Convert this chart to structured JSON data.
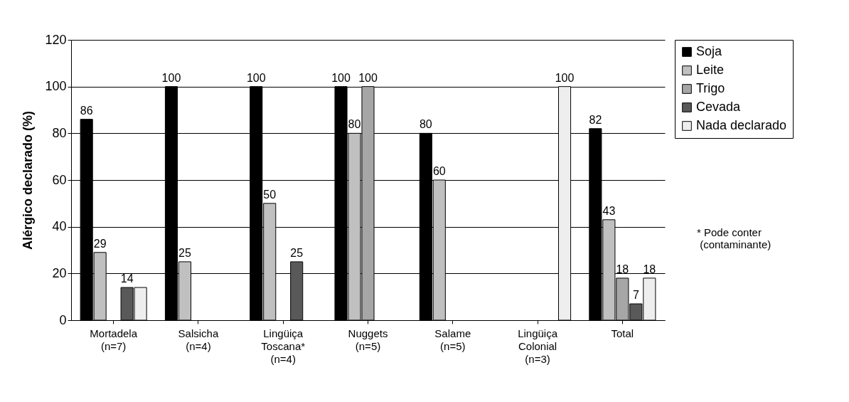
{
  "chart_data": {
    "type": "bar",
    "ylabel": "Alérgico declarado (%)",
    "categories": [
      "Mortadela\n(n=7)",
      "Salsicha\n(n=4)",
      "Lingüiça\nToscana*\n(n=4)",
      "Nuggets\n(n=5)",
      "Salame\n(n=5)",
      "Lingüiça\nColonial\n(n=3)",
      "Total"
    ],
    "series": [
      {
        "name": "Soja",
        "color": "#000000",
        "values": [
          86,
          100,
          100,
          100,
          80,
          null,
          82
        ],
        "value_labels": [
          "86",
          "100",
          "100",
          "100",
          "80",
          null,
          "82"
        ]
      },
      {
        "name": "Leite",
        "color": "#c0c0c0",
        "values": [
          29,
          25,
          50,
          80,
          60,
          null,
          43
        ],
        "value_labels": [
          "29",
          "25",
          "50",
          "80",
          "60",
          null,
          "43"
        ]
      },
      {
        "name": "Trigo",
        "color": "#a6a6a6",
        "values": [
          null,
          null,
          null,
          100,
          null,
          null,
          18
        ],
        "value_labels": [
          null,
          null,
          null,
          "100",
          null,
          null,
          "18"
        ]
      },
      {
        "name": "Cevada",
        "color": "#595959",
        "values": [
          14,
          null,
          25,
          null,
          null,
          null,
          7
        ],
        "value_labels": [
          "14",
          null,
          "25",
          null,
          null,
          null,
          "7"
        ]
      },
      {
        "name": "Nada declarado",
        "color": "#eeeeee",
        "values": [
          14,
          null,
          null,
          null,
          null,
          100,
          18
        ],
        "value_labels": [
          null,
          null,
          null,
          null,
          null,
          "100",
          "18"
        ]
      }
    ],
    "ylim": [
      0,
      120
    ],
    "yticks": [
      0,
      20,
      40,
      60,
      80,
      100,
      120
    ],
    "grid": "y",
    "legend": "right",
    "annotations": [
      "* Pode conter\n (contaminante)"
    ]
  }
}
